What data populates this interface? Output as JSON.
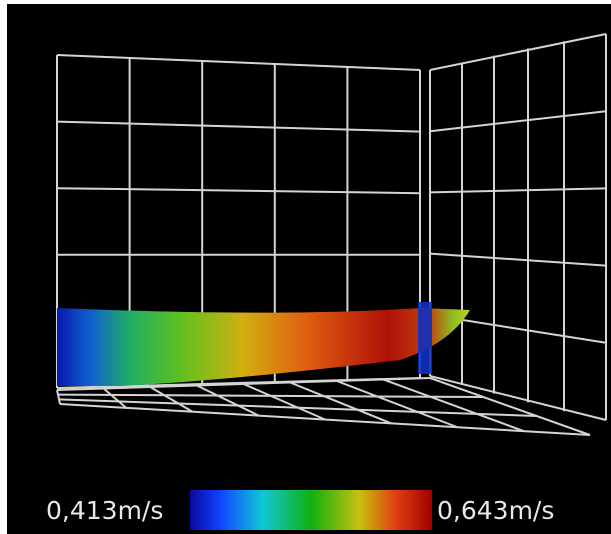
{
  "colorbar": {
    "min_label": "0,413m/s",
    "max_label": "0,643m/s"
  }
}
